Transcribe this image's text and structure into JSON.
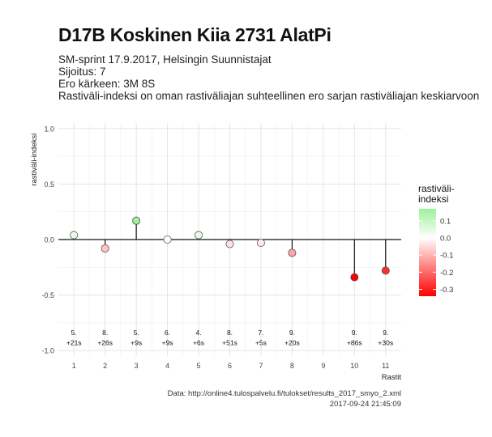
{
  "header": {
    "title": "D17B Koskinen Kiia 2731 AlatPi",
    "subtitle_lines": [
      "SM-sprint 17.9.2017, Helsingin Suunnistajat",
      "Sijoitus: 7",
      "Ero kärkeen: 3M 8S",
      "Rastiväli-indeksi on oman rastiväliajan suhteellinen ero sarjan rastiväliajan keskiarvoon"
    ]
  },
  "footer": {
    "source": "Data: http://online4.tulospalvelu.fi/tulokset/results_2017_smyo_2.xml",
    "timestamp": "2017-09-24 21:45:09"
  },
  "chart_data": {
    "type": "scatter",
    "style": "lollipop",
    "xlabel": "Rastit",
    "ylabel": "rastiväli-indeksi",
    "x": [
      1,
      2,
      3,
      4,
      5,
      6,
      7,
      8,
      9,
      10,
      11
    ],
    "y": [
      0.04,
      -0.08,
      0.17,
      0.0,
      0.04,
      -0.04,
      -0.03,
      -0.12,
      null,
      -0.34,
      -0.28
    ],
    "labels_rank": [
      "5.",
      "8.",
      "5.",
      "6.",
      "4.",
      "8.",
      "7.",
      "9.",
      "",
      "9.",
      "9."
    ],
    "labels_behind": [
      "+21s",
      "+26s",
      "+9s",
      "+9s",
      "+6s",
      "+51s",
      "+5s",
      "+20s",
      "",
      "+86s",
      "+30s"
    ],
    "xlim": [
      0.5,
      11.5
    ],
    "ylim": [
      -1.05,
      1.05
    ],
    "yticks": [
      -1.0,
      -0.5,
      0.0,
      0.5,
      1.0
    ],
    "ytick_labels": [
      "-1.0",
      "-0.5",
      "0.0",
      "0.5",
      "1.0"
    ],
    "grid": true,
    "legend": {
      "title": "rastiväli-\nindeksi",
      "placement": "right",
      "ticks": [
        0.1,
        0.0,
        -0.1,
        -0.2,
        -0.3
      ],
      "tick_labels": [
        "0.1",
        "0.0",
        "-0.1",
        "-0.2",
        "-0.3"
      ],
      "range": [
        -0.34,
        0.17
      ],
      "colors": {
        "high": "#9ef09a",
        "mid": "#ffffff",
        "low": "#ff0000"
      }
    },
    "colors": {
      "panel": "#ffffff",
      "grid": "#e2e2e2",
      "zero_line": "#111111",
      "stem": "#111111"
    }
  }
}
